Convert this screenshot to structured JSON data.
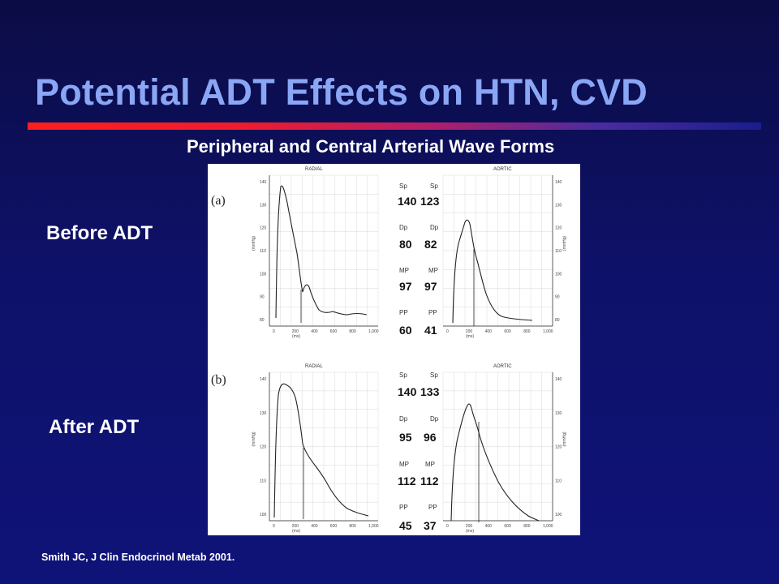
{
  "slide": {
    "title": "Potential ADT Effects on HTN, CVD",
    "subtitle": "Peripheral and Central Arterial Wave Forms",
    "before_label": "Before ADT",
    "after_label": "After ADT",
    "citation": "Smith JC, J Clin Endocrinol Metab 2001."
  },
  "figure": {
    "panel_a": {
      "tag": "(a)",
      "left_header": "RADIAL",
      "right_header": "AORTIC",
      "sp_label": "Sp",
      "dp_label": "Dp",
      "mp_label": "MP",
      "pp_label": "PP",
      "sp_radial": "140",
      "sp_aortic": "123",
      "dp_radial": "80",
      "dp_aortic": "82",
      "mp_radial": "97",
      "mp_aortic": "97",
      "pp_radial": "60",
      "pp_aortic": "41"
    },
    "panel_b": {
      "tag": "(b)",
      "left_header": "RADIAL",
      "right_header": "AORTIC",
      "sp_label": "Sp",
      "dp_label": "Dp",
      "mp_label": "MP",
      "pp_label": "PP",
      "sp_radial": "140",
      "sp_aortic": "133",
      "dp_radial": "95",
      "dp_aortic": "96",
      "mp_radial": "112",
      "mp_aortic": "112",
      "pp_radial": "45",
      "pp_aortic": "37"
    },
    "y_ticks_a": [
      "140",
      "130",
      "120",
      "110",
      "100",
      "90",
      "80"
    ],
    "y_ticks_b": [
      "140",
      "130",
      "120",
      "110",
      "100"
    ],
    "x_ticks": [
      "0",
      "200",
      "400",
      "600",
      "800",
      "1,000"
    ],
    "x_unit": "(ms)",
    "y_unit": "(mmHg)",
    "colors": {
      "ink": "#222222",
      "grid": "#c8c8c8"
    }
  }
}
